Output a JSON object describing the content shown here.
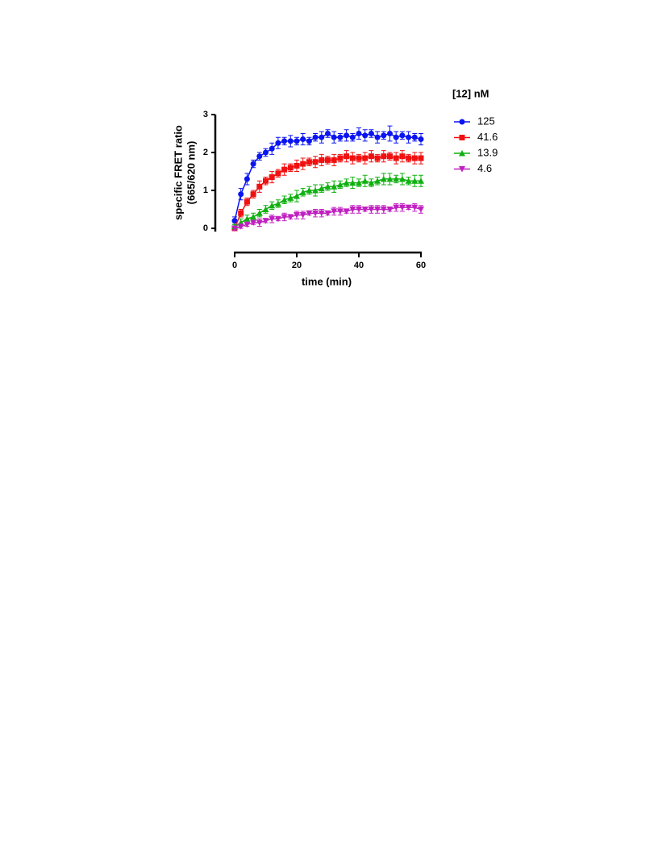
{
  "chart_data": {
    "type": "line",
    "xlabel": "time (min)",
    "ylabel": [
      "specific FRET ratio",
      "(665/620 nm)"
    ],
    "legend_title": "[12] nM",
    "legend": "right",
    "x": [
      0,
      2,
      4,
      6,
      8,
      10,
      12,
      14,
      16,
      18,
      20,
      22,
      24,
      26,
      28,
      30,
      32,
      34,
      36,
      38,
      40,
      42,
      44,
      46,
      48,
      50,
      52,
      54,
      56,
      58,
      60
    ],
    "xlim": [
      0,
      60
    ],
    "xticks": [
      0,
      20,
      40,
      60
    ],
    "ylim": [
      0,
      3
    ],
    "yticks": [
      0,
      1,
      2,
      3
    ],
    "series": [
      {
        "name": "125",
        "color": "#0a14f0",
        "marker": "circle",
        "values": [
          0.2,
          0.9,
          1.3,
          1.7,
          1.9,
          2.0,
          2.1,
          2.25,
          2.3,
          2.3,
          2.3,
          2.35,
          2.3,
          2.4,
          2.4,
          2.5,
          2.4,
          2.4,
          2.45,
          2.4,
          2.5,
          2.45,
          2.5,
          2.4,
          2.45,
          2.5,
          2.4,
          2.45,
          2.4,
          2.4,
          2.35
        ],
        "errors": [
          0.1,
          0.15,
          0.15,
          0.1,
          0.1,
          0.1,
          0.15,
          0.15,
          0.1,
          0.15,
          0.1,
          0.15,
          0.1,
          0.1,
          0.15,
          0.1,
          0.15,
          0.1,
          0.15,
          0.1,
          0.15,
          0.15,
          0.1,
          0.15,
          0.1,
          0.2,
          0.15,
          0.1,
          0.15,
          0.1,
          0.15
        ]
      },
      {
        "name": "41.6",
        "color": "#f01010",
        "marker": "square",
        "values": [
          0.0,
          0.4,
          0.7,
          0.9,
          1.1,
          1.25,
          1.35,
          1.45,
          1.55,
          1.6,
          1.65,
          1.7,
          1.75,
          1.75,
          1.8,
          1.8,
          1.8,
          1.85,
          1.9,
          1.85,
          1.85,
          1.85,
          1.9,
          1.85,
          1.9,
          1.9,
          1.85,
          1.9,
          1.85,
          1.85,
          1.85
        ],
        "errors": [
          0.05,
          0.1,
          0.1,
          0.1,
          0.15,
          0.1,
          0.15,
          0.1,
          0.15,
          0.1,
          0.15,
          0.15,
          0.1,
          0.15,
          0.15,
          0.1,
          0.15,
          0.1,
          0.15,
          0.15,
          0.1,
          0.15,
          0.15,
          0.1,
          0.15,
          0.1,
          0.15,
          0.15,
          0.1,
          0.15,
          0.15
        ]
      },
      {
        "name": "13.9",
        "color": "#10b010",
        "marker": "triangle-up",
        "values": [
          0.05,
          0.15,
          0.25,
          0.3,
          0.4,
          0.5,
          0.6,
          0.65,
          0.75,
          0.8,
          0.85,
          0.95,
          1.0,
          1.0,
          1.05,
          1.1,
          1.1,
          1.15,
          1.2,
          1.2,
          1.2,
          1.25,
          1.2,
          1.25,
          1.3,
          1.3,
          1.3,
          1.3,
          1.25,
          1.25,
          1.25
        ],
        "errors": [
          0.05,
          0.1,
          0.1,
          0.1,
          0.1,
          0.1,
          0.1,
          0.1,
          0.1,
          0.1,
          0.15,
          0.1,
          0.1,
          0.15,
          0.1,
          0.1,
          0.15,
          0.1,
          0.1,
          0.15,
          0.1,
          0.15,
          0.1,
          0.1,
          0.15,
          0.15,
          0.1,
          0.15,
          0.1,
          0.15,
          0.15
        ]
      },
      {
        "name": "4.6",
        "color": "#c020c0",
        "marker": "triangle-down",
        "values": [
          0.0,
          0.05,
          0.1,
          0.15,
          0.15,
          0.2,
          0.25,
          0.25,
          0.3,
          0.3,
          0.35,
          0.35,
          0.4,
          0.4,
          0.4,
          0.4,
          0.45,
          0.45,
          0.45,
          0.5,
          0.5,
          0.5,
          0.5,
          0.5,
          0.5,
          0.5,
          0.55,
          0.55,
          0.55,
          0.55,
          0.5
        ],
        "errors": [
          0.05,
          0.05,
          0.05,
          0.05,
          0.1,
          0.05,
          0.1,
          0.05,
          0.1,
          0.05,
          0.1,
          0.1,
          0.05,
          0.1,
          0.1,
          0.05,
          0.1,
          0.1,
          0.05,
          0.1,
          0.1,
          0.05,
          0.1,
          0.1,
          0.1,
          0.05,
          0.1,
          0.1,
          0.05,
          0.1,
          0.1
        ]
      }
    ]
  }
}
